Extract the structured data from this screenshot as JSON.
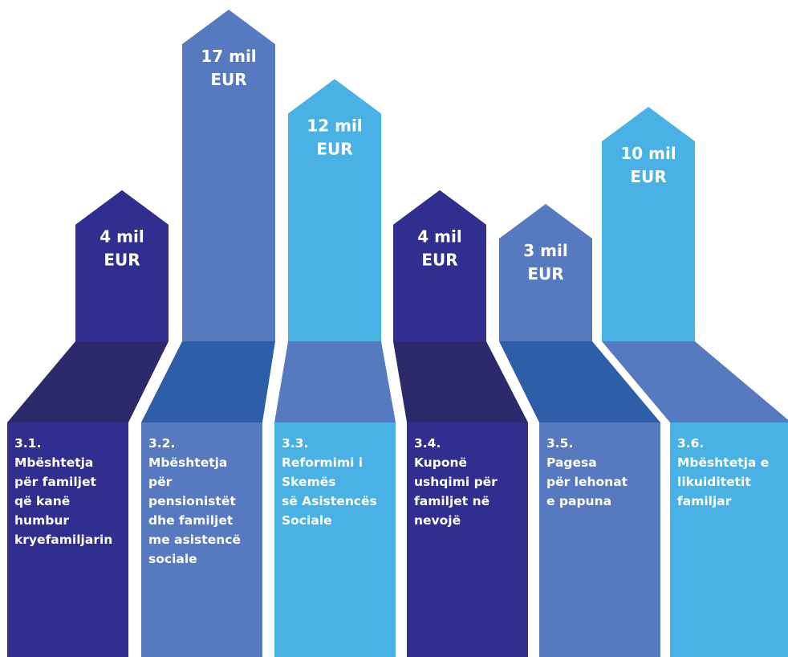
{
  "chart_data": {
    "type": "bar",
    "title": "",
    "unit": "mil EUR",
    "categories": [
      "3.1. Mbështetja për familjet që kanë humbur kryefamiljarin",
      "3.2. Mbështetja për pensionistët dhe familjet me asistencë sociale",
      "3.3. Reformimi i Skemës së Asistencës Sociale",
      "3.4. Kuponë ushqimi për familjet në nevojë",
      "3.5. Pagesa për lehonat e papuna",
      "3.6. Mbështetja e likuiditetit familjar"
    ],
    "values": [
      4,
      17,
      12,
      4,
      3,
      10
    ],
    "ylim": [
      0,
      17
    ]
  },
  "bars": [
    {
      "value_lines": [
        "4 mil",
        "EUR"
      ],
      "label_lines": [
        "3.1.",
        "Mbështetja",
        "për familjet",
        "që kanë",
        "humbur",
        "kryefamiljarin"
      ],
      "colors": {
        "pillar": "#302e8e",
        "ribbon": "#2c2a6a",
        "base": "#302e8e"
      }
    },
    {
      "value_lines": [
        "17 mil",
        "EUR"
      ],
      "label_lines": [
        "3.2.",
        "Mbështetja",
        "për",
        "pensionistët",
        "dhe familjet",
        "me asistencë",
        "sociale"
      ],
      "colors": {
        "pillar": "#5679c0",
        "ribbon": "#2e5ea7",
        "base": "#5679c0"
      }
    },
    {
      "value_lines": [
        "12 mil",
        "EUR"
      ],
      "label_lines": [
        "3.3.",
        "Reformimi i",
        "Skemës",
        "së Asistencës",
        "Sociale"
      ],
      "colors": {
        "pillar": "#49b1e3",
        "ribbon": "#5679c0",
        "base": "#49b1e3"
      }
    },
    {
      "value_lines": [
        "4 mil",
        "EUR"
      ],
      "label_lines": [
        "3.4.",
        "Kuponë",
        "ushqimi për",
        "familjet në",
        "nevojë"
      ],
      "colors": {
        "pillar": "#302e8e",
        "ribbon": "#2c2a6a",
        "base": "#302e8e"
      }
    },
    {
      "value_lines": [
        "3 mil",
        "EUR"
      ],
      "label_lines": [
        "3.5.",
        "Pagesa",
        "për lehonat",
        "e papuna"
      ],
      "colors": {
        "pillar": "#5679c0",
        "ribbon": "#2e5ea7",
        "base": "#5679c0"
      }
    },
    {
      "value_lines": [
        "10 mil",
        "EUR"
      ],
      "label_lines": [
        "3.6.",
        "Mbështetja e",
        "likuiditetit",
        "familjar"
      ],
      "colors": {
        "pillar": "#49b1e3",
        "ribbon": "#5679c0",
        "base": "#49b1e3"
      }
    }
  ]
}
